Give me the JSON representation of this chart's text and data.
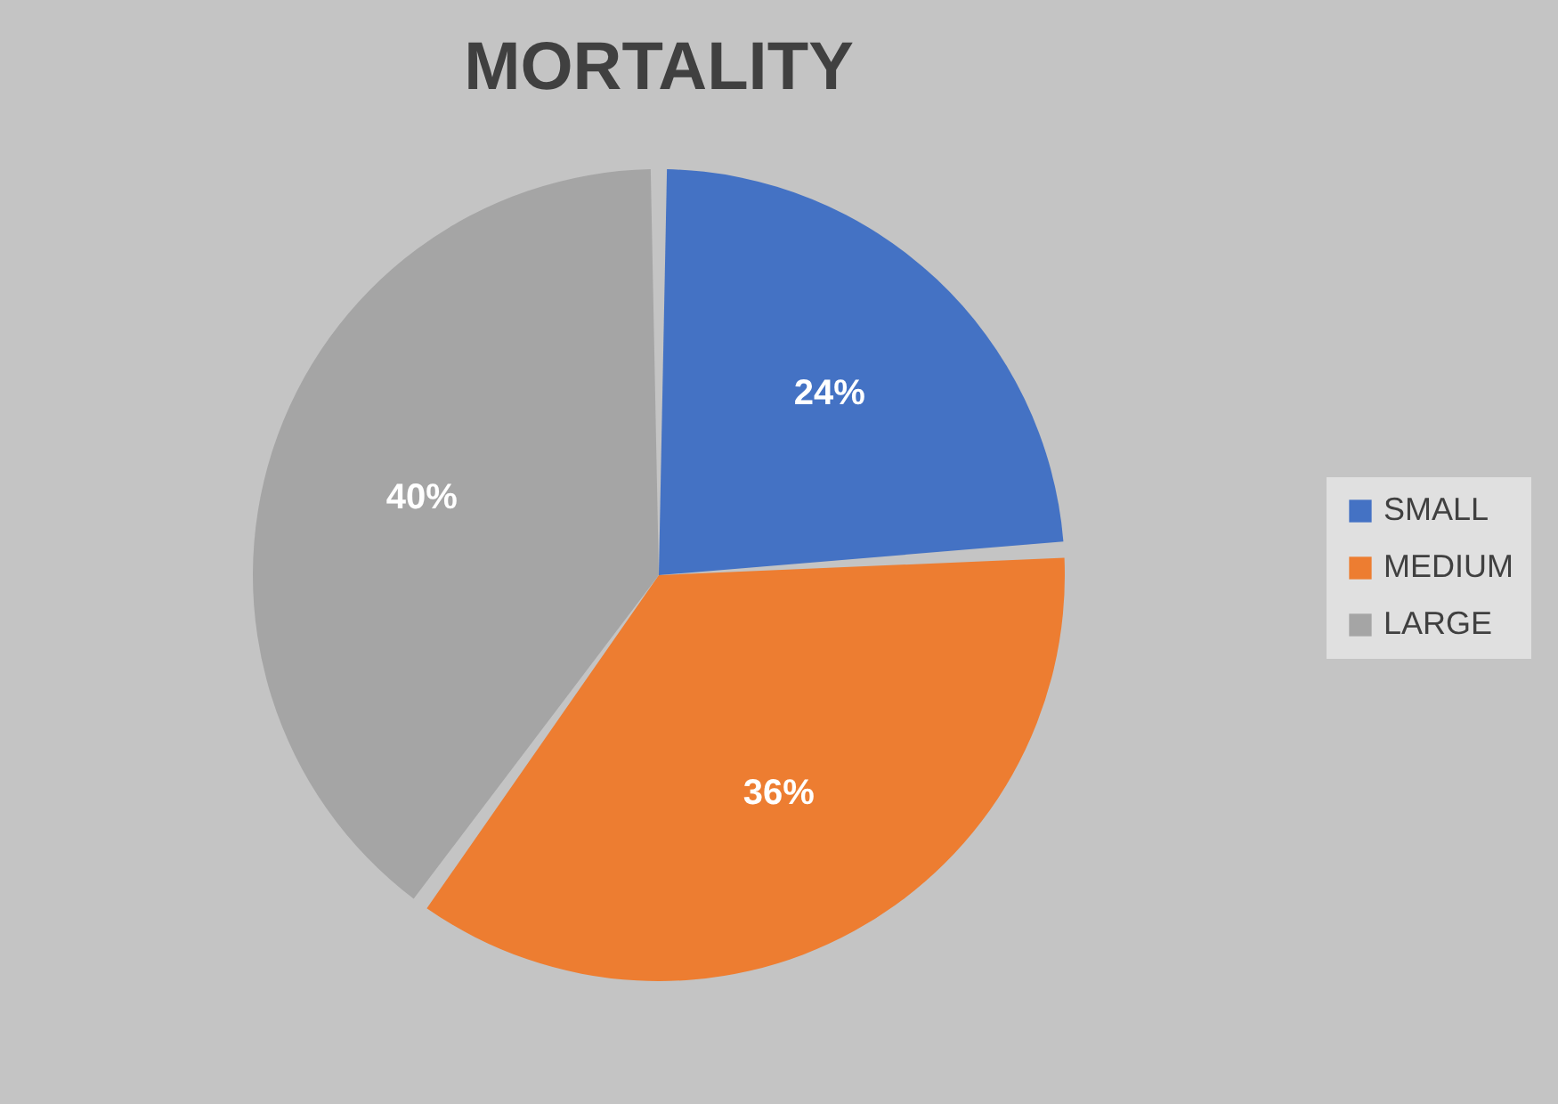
{
  "chart_data": {
    "type": "pie",
    "title": "MORTALITY",
    "categories": [
      "SMALL",
      "MEDIUM",
      "LARGE"
    ],
    "values": [
      24,
      36,
      40
    ],
    "colors": [
      "#4472c4",
      "#ed7d31",
      "#a5a5a5"
    ],
    "value_labels": [
      "24%",
      "36%",
      "40%"
    ],
    "legend": "right"
  }
}
